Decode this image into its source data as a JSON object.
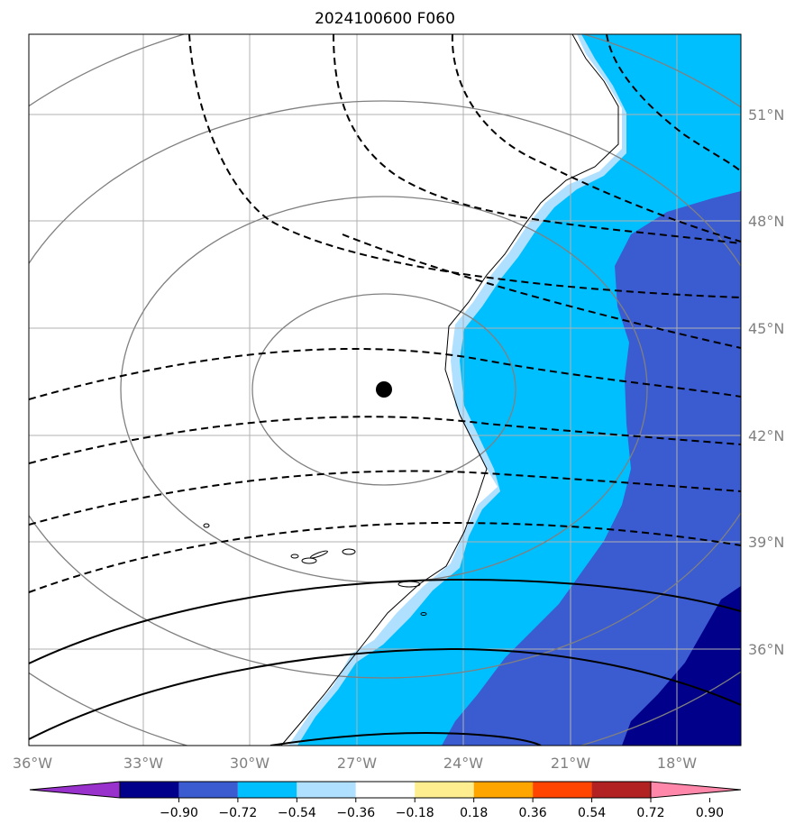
{
  "title": "2024100600 F060",
  "map": {
    "lon_ticks": [
      "36°W",
      "33°W",
      "30°W",
      "27°W",
      "24°W",
      "21°W",
      "18°W"
    ],
    "lat_ticks": [
      "51°N",
      "48°N",
      "45°N",
      "42°N",
      "39°N",
      "36°N"
    ],
    "lon_range": [
      -36,
      -17
    ],
    "lat_range": [
      33.5,
      53
    ],
    "grid": true,
    "center_marker": {
      "lon": -26.3,
      "lat": 43.3
    }
  },
  "colorbar": {
    "labels": [
      "−0.90",
      "−0.72",
      "−0.54",
      "−0.36",
      "−0.18",
      "0.18",
      "0.36",
      "0.54",
      "0.72",
      "0.90"
    ],
    "colors": [
      "#9932cc",
      "#00008b",
      "#3b5bd1",
      "#00bfff",
      "#b0e0ff",
      "#ffffff",
      "#ffee90",
      "#ffa500",
      "#ff4500",
      "#b22222",
      "#ff88aa"
    ],
    "extend": "both"
  },
  "fill_colors": {
    "deep": "#00008b",
    "mid": "#3b5bd1",
    "light": "#00bfff",
    "pale": "#b0e0ff"
  }
}
